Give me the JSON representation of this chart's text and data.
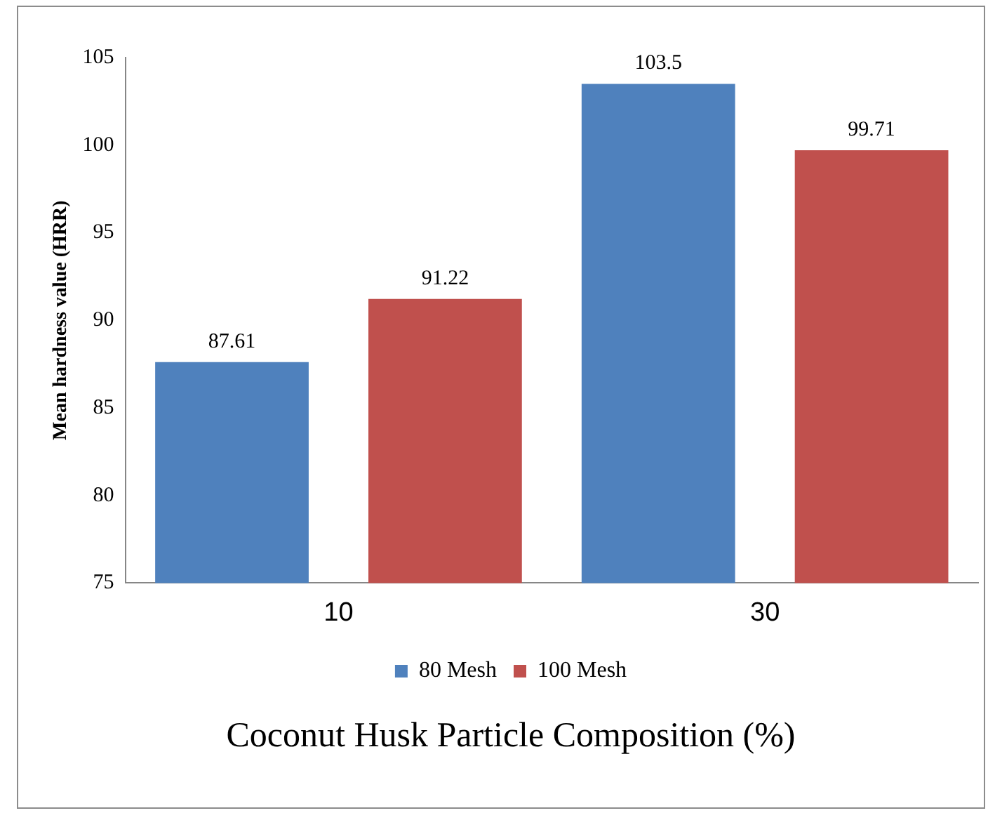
{
  "chart_data": {
    "type": "bar",
    "xlabel": "Coconut Husk Particle Composition (%)",
    "ylabel": "Mean hardness value (HRR)",
    "categories": [
      "10",
      "30"
    ],
    "series": [
      {
        "name": "80 Mesh",
        "color": "#4f81bd",
        "values": [
          87.61,
          103.5
        ]
      },
      {
        "name": "100 Mesh",
        "color": "#c0504d",
        "values": [
          91.22,
          99.71
        ]
      }
    ],
    "ylim": [
      75,
      105
    ],
    "yticks": [
      75,
      80,
      85,
      90,
      95,
      100,
      105
    ],
    "grid": false,
    "legend": "bottom",
    "data_labels": true
  }
}
